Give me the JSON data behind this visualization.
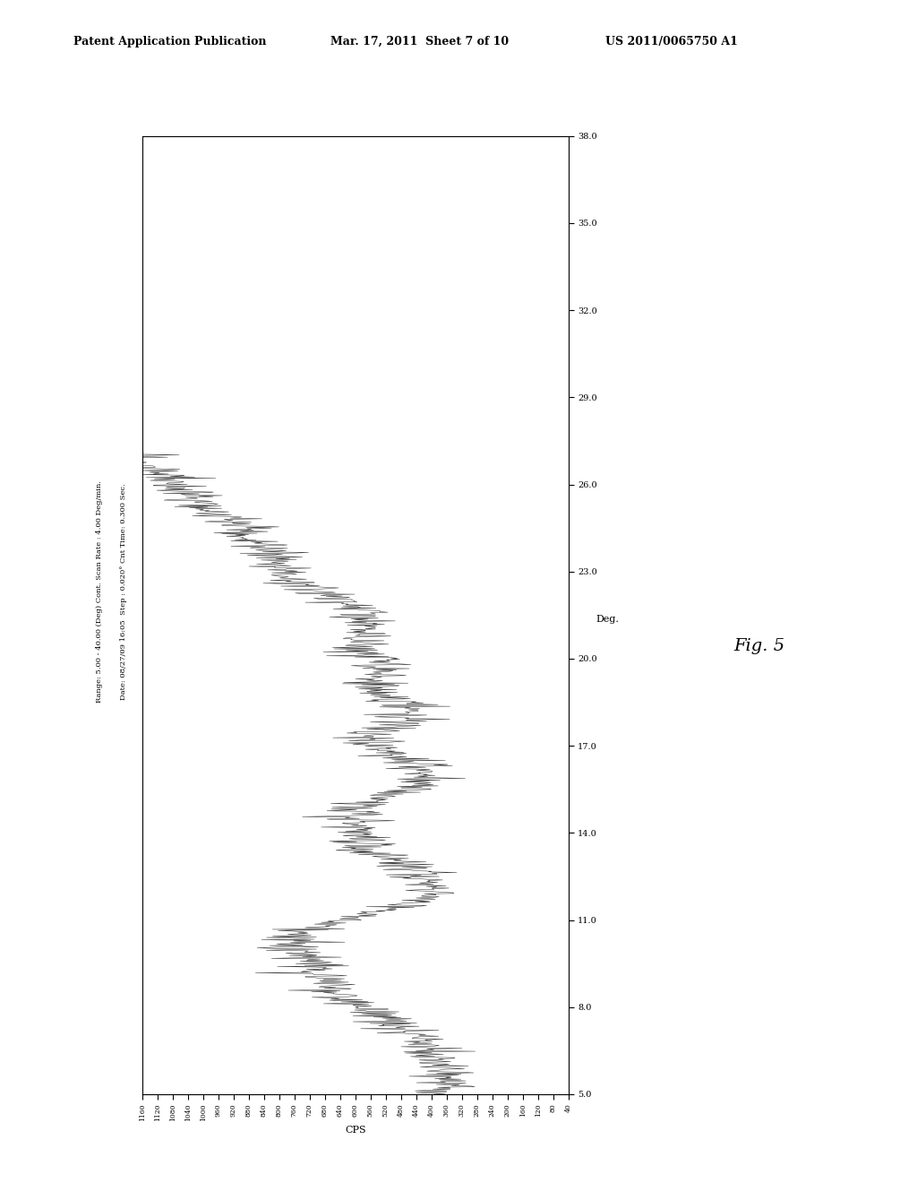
{
  "title_line1": "Patent Application Publication",
  "title_line2": "Mar. 17, 2011  Sheet 7 of 10",
  "title_line3": "US 2011/0065750 A1",
  "fig_label": "Fig. 5",
  "date_text": "Date: 08/27/09 16:05  Step : 0.020° Cnt Time: 0.300 Sec.",
  "range_text": "Range: 5.00 - 40.00 (Deg) Cont. Scan Rate : 4.00 Deg/min.",
  "deg_label": "Deg.",
  "cps_label": "CPS",
  "deg_min": 5.0,
  "deg_max": 38.0,
  "cps_min": 40,
  "cps_max": 1160,
  "deg_ticks": [
    5.0,
    8.0,
    11.0,
    14.0,
    17.0,
    20.0,
    23.0,
    26.0,
    29.0,
    32.0,
    35.0,
    38.0
  ],
  "cps_ticks": [
    40,
    80,
    120,
    160,
    200,
    240,
    280,
    320,
    360,
    400,
    440,
    480,
    520,
    560,
    600,
    640,
    680,
    720,
    760,
    800,
    840,
    880,
    920,
    960,
    1000,
    1040,
    1080,
    1120,
    1160
  ],
  "background_color": "#ffffff",
  "line_color": "#1a1a1a",
  "seed": 42
}
